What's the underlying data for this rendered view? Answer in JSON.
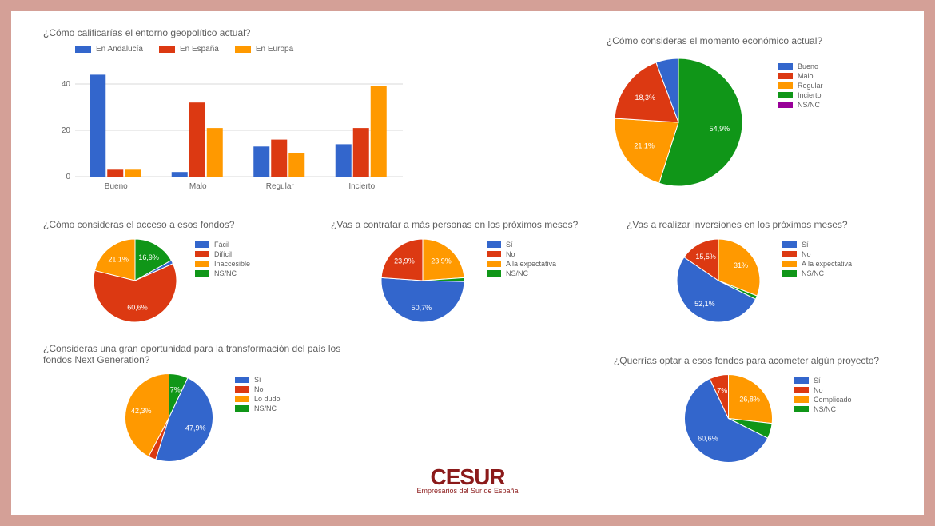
{
  "colors": {
    "blue": "#3366cc",
    "red": "#dc3912",
    "orange": "#ff9900",
    "green": "#109618",
    "purple": "#990099"
  },
  "barChart": {
    "title": "¿Cómo calificarías el entorno geopolítico actual?",
    "series": [
      {
        "label": "En Andalucía",
        "color": "#3366cc"
      },
      {
        "label": "En España",
        "color": "#dc3912"
      },
      {
        "label": "En Europa",
        "color": "#ff9900"
      }
    ],
    "categories": [
      "Bueno",
      "Malo",
      "Regular",
      "Incierto"
    ],
    "data": [
      [
        44,
        3,
        3
      ],
      [
        2,
        32,
        21
      ],
      [
        13,
        16,
        10
      ],
      [
        14,
        21,
        39
      ]
    ],
    "ymax": 50,
    "yticks": [
      0,
      20,
      40
    ]
  },
  "pies": {
    "momento": {
      "title": "¿Cómo consideras el momento económico actual?",
      "legend": [
        {
          "label": "Bueno",
          "color": "#3366cc"
        },
        {
          "label": "Malo",
          "color": "#dc3912"
        },
        {
          "label": "Regular",
          "color": "#ff9900"
        },
        {
          "label": "Incierto",
          "color": "#109618"
        },
        {
          "label": "NS/NC",
          "color": "#990099"
        }
      ],
      "slices": [
        {
          "value": 54.9,
          "label": "54,9%",
          "color": "#109618"
        },
        {
          "value": 21.1,
          "label": "21,1%",
          "color": "#ff9900"
        },
        {
          "value": 18.3,
          "label": "18,3%",
          "color": "#dc3912"
        },
        {
          "value": 5.7,
          "label": "",
          "color": "#3366cc"
        }
      ]
    },
    "acceso": {
      "title": "¿Cómo consideras el acceso a esos fondos?",
      "legend": [
        {
          "label": "Fácil",
          "color": "#3366cc"
        },
        {
          "label": "Difícil",
          "color": "#dc3912"
        },
        {
          "label": "Inaccesible",
          "color": "#ff9900"
        },
        {
          "label": "NS/NC",
          "color": "#109618"
        }
      ],
      "slices": [
        {
          "value": 16.9,
          "label": "16,9%",
          "color": "#109618"
        },
        {
          "value": 1.4,
          "label": "",
          "color": "#3366cc"
        },
        {
          "value": 60.6,
          "label": "60,6%",
          "color": "#dc3912"
        },
        {
          "value": 21.1,
          "label": "21,1%",
          "color": "#ff9900"
        }
      ]
    },
    "contratar": {
      "title": "¿Vas a contratar a más personas en los próximos meses?",
      "legend": [
        {
          "label": "Sí",
          "color": "#3366cc"
        },
        {
          "label": "No",
          "color": "#dc3912"
        },
        {
          "label": "A la expectativa",
          "color": "#ff9900"
        },
        {
          "label": "NS/NC",
          "color": "#109618"
        }
      ],
      "slices": [
        {
          "value": 23.9,
          "label": "23,9%",
          "color": "#ff9900"
        },
        {
          "value": 1.5,
          "label": "",
          "color": "#109618"
        },
        {
          "value": 50.7,
          "label": "50,7%",
          "color": "#3366cc"
        },
        {
          "value": 23.9,
          "label": "23,9%",
          "color": "#dc3912"
        }
      ]
    },
    "inversiones": {
      "title": "¿Vas a realizar inversiones en los próximos meses?",
      "legend": [
        {
          "label": "Sí",
          "color": "#3366cc"
        },
        {
          "label": "No",
          "color": "#dc3912"
        },
        {
          "label": "A la expectativa",
          "color": "#ff9900"
        },
        {
          "label": "NS/NC",
          "color": "#109618"
        }
      ],
      "slices": [
        {
          "value": 31,
          "label": "31%",
          "color": "#ff9900"
        },
        {
          "value": 1.4,
          "label": "",
          "color": "#109618"
        },
        {
          "value": 52.1,
          "label": "52,1%",
          "color": "#3366cc"
        },
        {
          "value": 15.5,
          "label": "15,5%",
          "color": "#dc3912"
        }
      ]
    },
    "nextgen": {
      "title": "¿Consideras una gran oportunidad para la transformación del país los fondos Next Generation?",
      "legend": [
        {
          "label": "Sí",
          "color": "#3366cc"
        },
        {
          "label": "No",
          "color": "#dc3912"
        },
        {
          "label": "Lo dudo",
          "color": "#ff9900"
        },
        {
          "label": "NS/NC",
          "color": "#109618"
        }
      ],
      "slices": [
        {
          "value": 7,
          "label": "7%",
          "color": "#109618"
        },
        {
          "value": 47.9,
          "label": "47,9%",
          "color": "#3366cc"
        },
        {
          "value": 2.8,
          "label": "",
          "color": "#dc3912"
        },
        {
          "value": 42.3,
          "label": "42,3%",
          "color": "#ff9900"
        }
      ]
    },
    "optar": {
      "title": "¿Querrías optar a esos fondos para acometer algún proyecto?",
      "legend": [
        {
          "label": "Sí",
          "color": "#3366cc"
        },
        {
          "label": "No",
          "color": "#dc3912"
        },
        {
          "label": "Complicado",
          "color": "#ff9900"
        },
        {
          "label": "NS/NC",
          "color": "#109618"
        }
      ],
      "slices": [
        {
          "value": 26.8,
          "label": "26,8%",
          "color": "#ff9900"
        },
        {
          "value": 5.6,
          "label": "",
          "color": "#109618"
        },
        {
          "value": 60.6,
          "label": "60,6%",
          "color": "#3366cc"
        },
        {
          "value": 7,
          "label": "7%",
          "color": "#dc3912"
        }
      ]
    }
  },
  "logo": {
    "main": "CESUR",
    "sub": "Empresarios del Sur de España"
  }
}
